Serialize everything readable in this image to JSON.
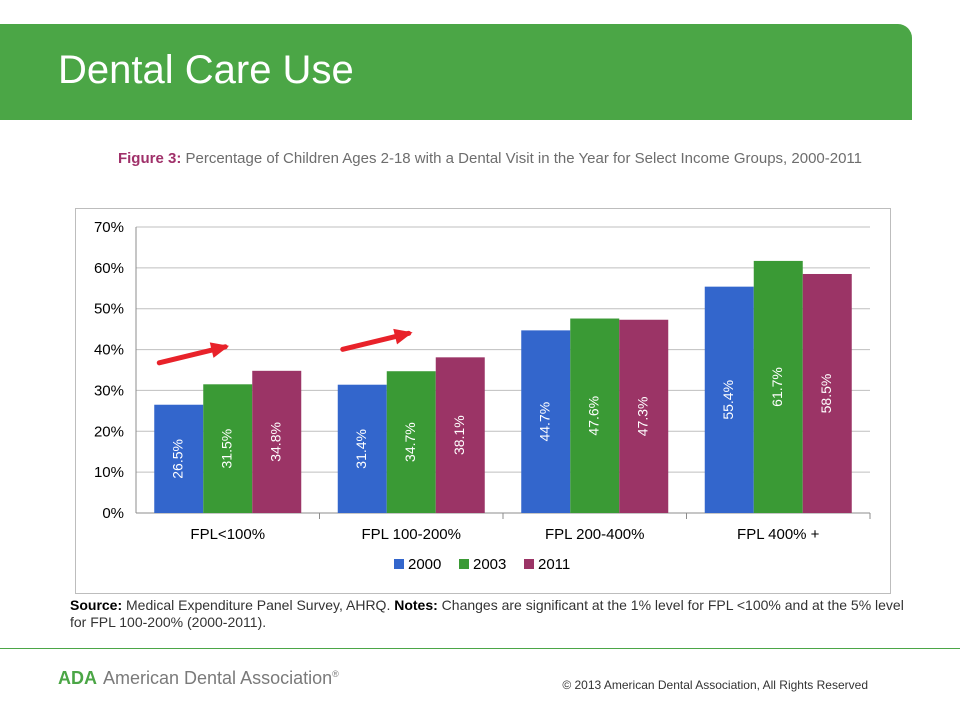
{
  "slide": {
    "title": "Dental Care Use",
    "figure_label": "Figure 3:",
    "figure_caption": "Percentage of Children Ages 2-18 with a Dental Visit in the Year for Select Income Groups, 2000-2011",
    "source_label": "Source:",
    "source_text": "Medical Expenditure Panel Survey, AHRQ.",
    "notes_label": "Notes:",
    "notes_text": "Changes are significant at the 1% level for FPL <100% and at the 5% level for FPL 100-200% (2000-2011).",
    "footer_logo_mark": "ADA",
    "footer_logo_text": "American Dental Association",
    "footer_logo_reg": "®",
    "copyright": "© 2013 American Dental Association, All Rights Reserved",
    "colors": {
      "header": "#4ba646",
      "accent": "#a0316a"
    }
  },
  "chart_data": {
    "type": "bar",
    "title": "",
    "xlabel": "",
    "ylabel": "",
    "categories": [
      "FPL<100%",
      "FPL 100-200%",
      "FPL 200-400%",
      "FPL 400% +"
    ],
    "series": [
      {
        "name": "2000",
        "color": "#3366cc",
        "values": [
          26.5,
          31.4,
          44.7,
          55.4
        ],
        "labels": [
          "26.5%",
          "31.4%",
          "44.7%",
          "55.4%"
        ]
      },
      {
        "name": "2003",
        "color": "#3a9a35",
        "values": [
          31.5,
          34.7,
          47.6,
          61.7
        ],
        "labels": [
          "31.5%",
          "34.7%",
          "47.6%",
          "61.7%"
        ]
      },
      {
        "name": "2011",
        "color": "#9b3466",
        "values": [
          34.8,
          38.1,
          47.3,
          58.5
        ],
        "labels": [
          "34.8%",
          "38.1%",
          "47.3%",
          "58.5%"
        ]
      }
    ],
    "ylim": [
      0,
      70
    ],
    "yticks": [
      0,
      10,
      20,
      30,
      40,
      50,
      60,
      70
    ],
    "ytick_labels": [
      "0%",
      "10%",
      "20%",
      "30%",
      "40%",
      "50%",
      "60%",
      "70%"
    ],
    "grid": true,
    "legend_position": "bottom",
    "annotations": [
      {
        "type": "arrow",
        "category": "FPL<100%",
        "color": "#e8222a"
      },
      {
        "type": "arrow",
        "category": "FPL 100-200%",
        "color": "#e8222a"
      }
    ]
  }
}
